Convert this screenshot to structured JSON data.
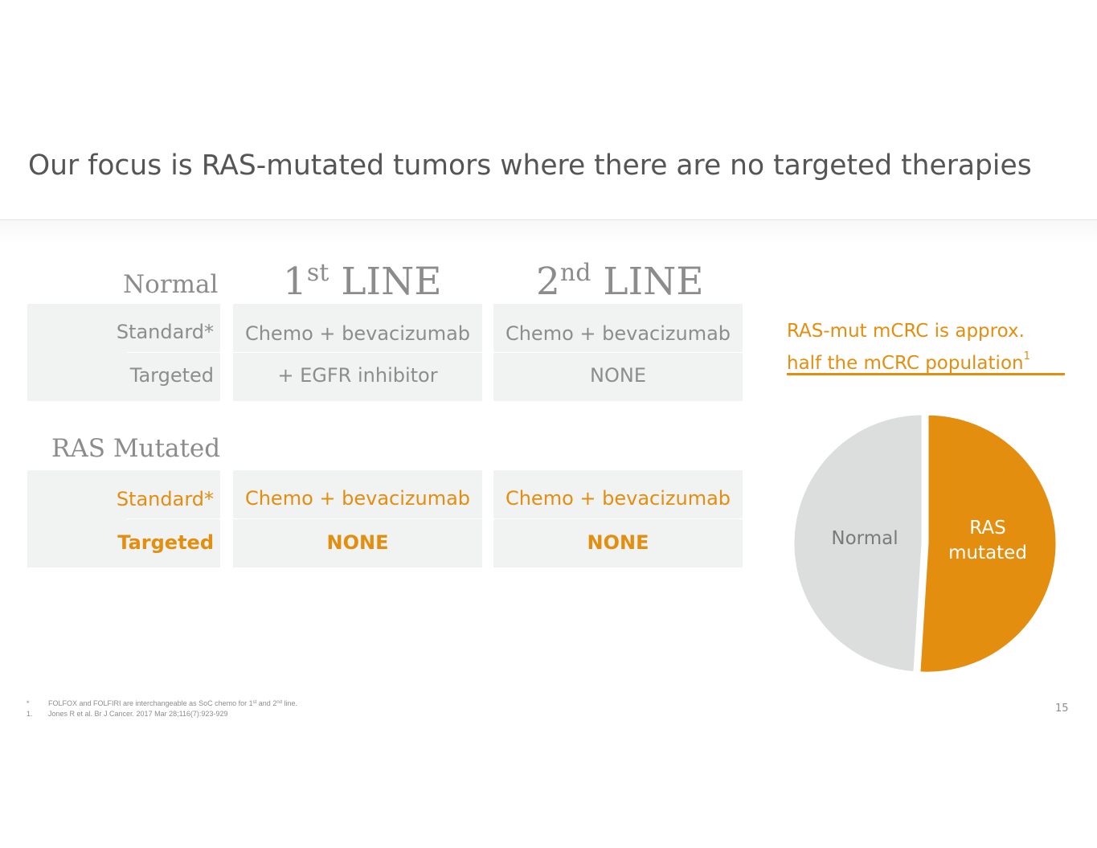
{
  "title": "Our focus is RAS-mutated tumors where there are no targeted therapies",
  "sections": {
    "normal": {
      "heading": "Normal",
      "rows": [
        {
          "label": "Standard*",
          "first_line": "Chemo + bevacizumab",
          "second_line": "Chemo + bevacizumab"
        },
        {
          "label": "Targeted",
          "first_line": "+ EGFR inhibitor",
          "second_line": "NONE"
        }
      ]
    },
    "ras_mutated": {
      "heading": "RAS Mutated",
      "rows": [
        {
          "label": "Standard*",
          "first_line": "Chemo + bevacizumab",
          "second_line": "Chemo + bevacizumab"
        },
        {
          "label": "Targeted",
          "first_line": "NONE",
          "second_line": "NONE"
        }
      ]
    }
  },
  "columns": {
    "first_line": {
      "num": "1",
      "suffix": "st",
      "word": "LINE"
    },
    "second_line": {
      "num": "2",
      "suffix": "nd",
      "word": "LINE"
    }
  },
  "side_note": {
    "line1": "RAS-mut mCRC is approx.",
    "line2": "half the mCRC population",
    "ref": "1"
  },
  "chart_data": {
    "type": "pie",
    "slices": [
      {
        "label": "RAS mutated",
        "label_lines": [
          "RAS",
          "mutated"
        ],
        "value": 51,
        "color": "#e48e10"
      },
      {
        "label": "Normal",
        "label_lines": [
          "Normal"
        ],
        "value": 49,
        "color": "#dcdddd"
      }
    ]
  },
  "footnotes": [
    {
      "mark": "*",
      "text_before": "FOLFOX and FOLFIRI are interchangeable as SoC chemo for 1",
      "sup1": "st",
      "text_mid": " and 2",
      "sup2": "nd",
      "text_after": " line."
    },
    {
      "mark": "1.",
      "text": "Jones R et al. Br J Cancer. 2017 Mar 28;116(7):923-929"
    }
  ],
  "page_number": "15",
  "colors": {
    "accent": "#e48e10",
    "box": "#f1f2f2",
    "text_gray": "#8d8d8d"
  }
}
